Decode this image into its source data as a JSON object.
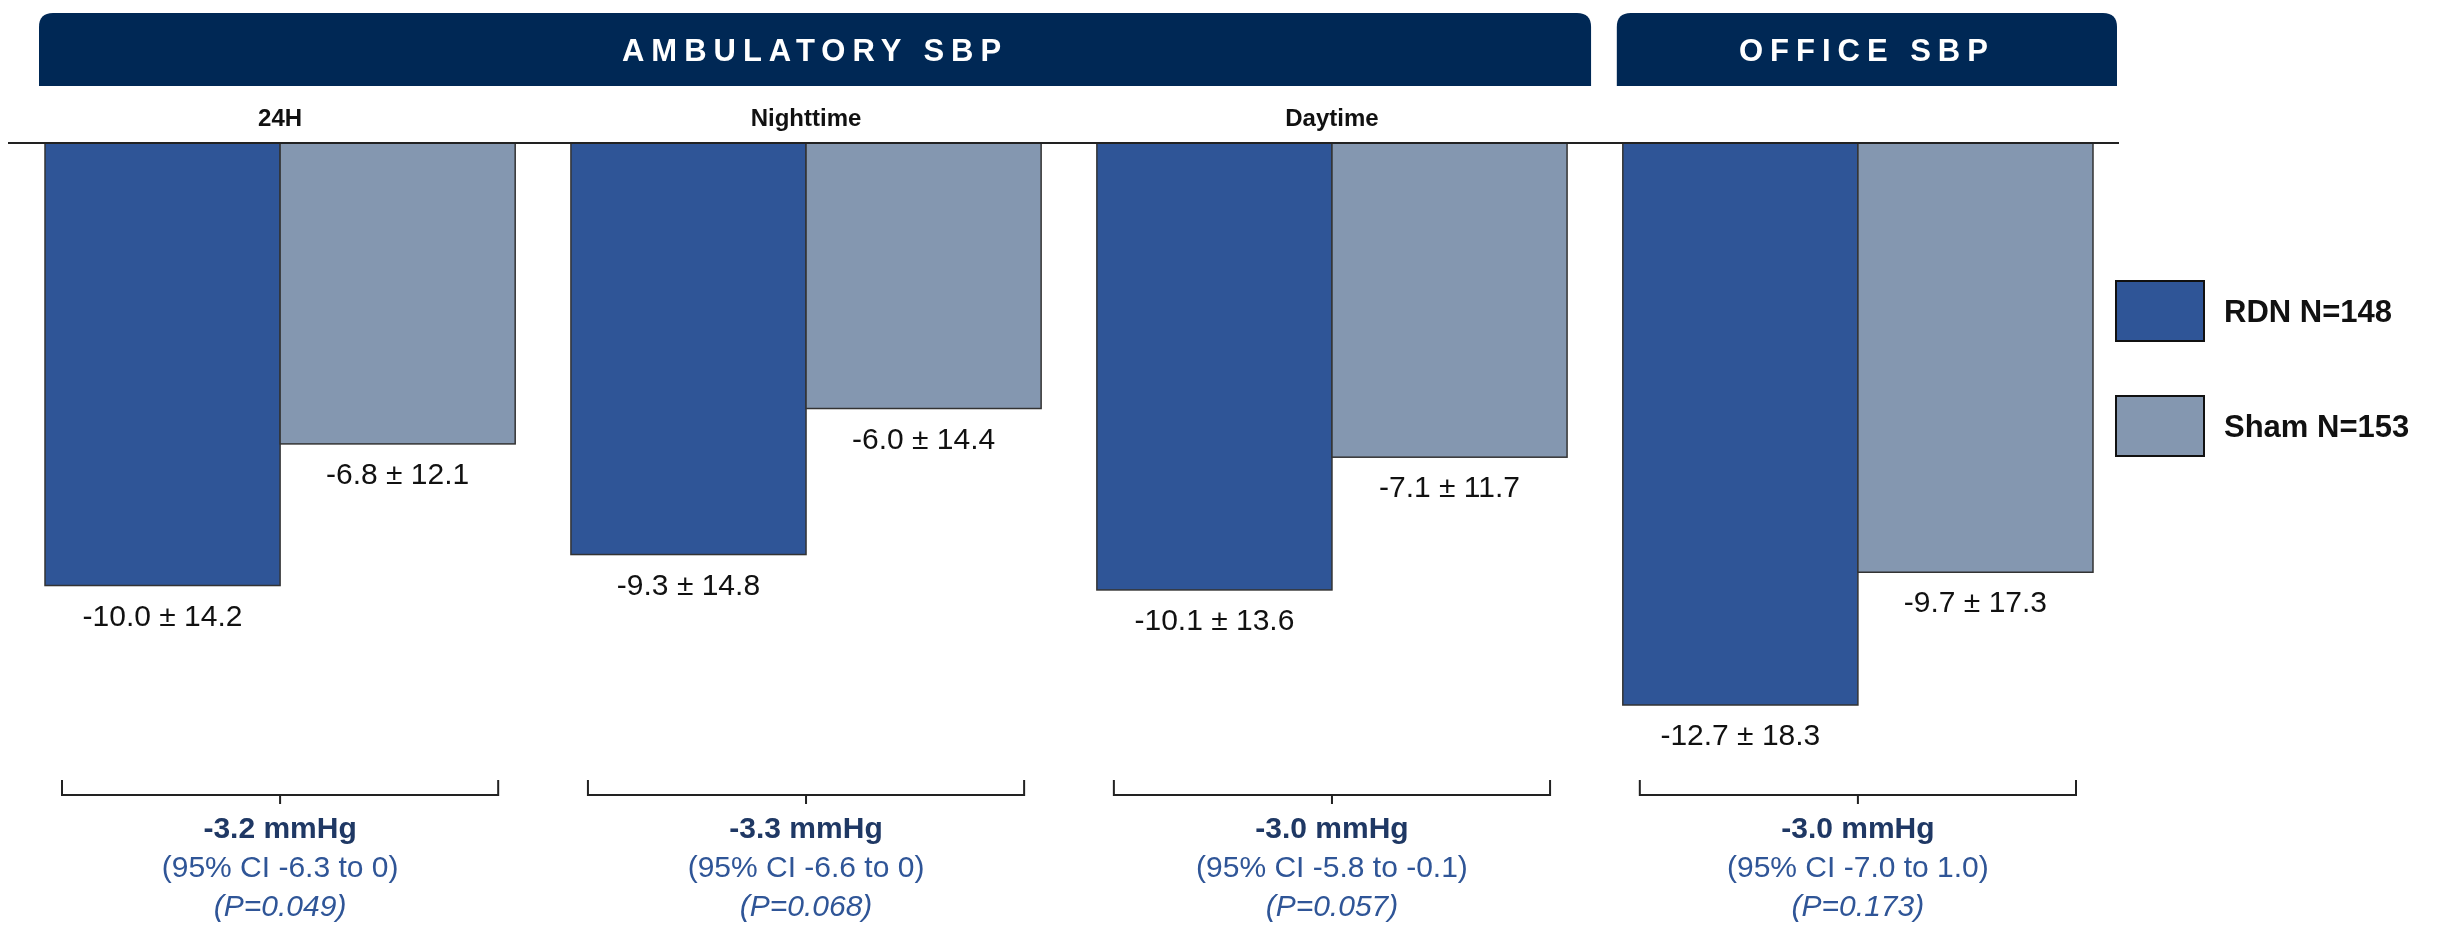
{
  "chart_data": {
    "type": "bar",
    "categories": [
      "24H",
      "Nighttime",
      "Daytime",
      null
    ],
    "series": [
      {
        "name": "RDN N=148",
        "color": "#2f5597",
        "values": [
          -10.0,
          -9.3,
          -10.1,
          -12.7
        ],
        "value_labels": [
          "-10.0 ± 14.2",
          "-9.3 ± 14.8",
          "-10.1 ± 13.6",
          "-12.7 ± 18.3"
        ]
      },
      {
        "name": "Sham N=153",
        "color": "#8497b0",
        "values": [
          -6.8,
          -6.0,
          -7.1,
          -9.7
        ],
        "value_labels": [
          "-6.8 ± 12.1",
          "-6.0 ± 14.4",
          "-7.1 ± 11.7",
          "-9.7 ± 17.3"
        ]
      }
    ],
    "annotations": [
      "AMBULATORY SBP",
      "OFFICE SBP",
      "-3.2 mmHg",
      "(95% CI -6.3 to 0)",
      "(P=0.049)",
      "-3.3 mmHg",
      "(95% CI -6.6 to 0)",
      "(P=0.068)",
      "-3.0 mmHg",
      "(95% CI -5.8 to -0.1)",
      "(P=0.057)",
      "-3.0 mmHg",
      "(95% CI -7.0 to 1.0)",
      "(P=0.173)"
    ],
    "legend": "right"
  }
}
